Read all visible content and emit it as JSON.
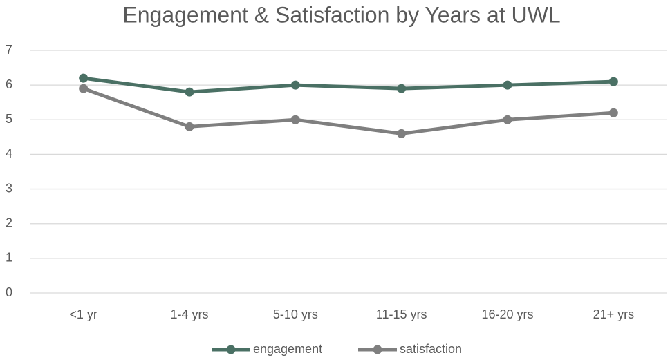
{
  "chart_data": {
    "type": "line",
    "title": "Engagement & Satisfaction by Years at UWL",
    "categories": [
      "<1 yr",
      "1-4 yrs",
      "5-10 yrs",
      "11-15 yrs",
      "16-20 yrs",
      "21+ yrs"
    ],
    "series": [
      {
        "name": "engagement",
        "color": "#4a7064",
        "values": [
          6.2,
          5.8,
          6.0,
          5.9,
          6.0,
          6.1
        ]
      },
      {
        "name": "satisfaction",
        "color": "#7f7f7f",
        "values": [
          5.9,
          4.8,
          5.0,
          4.6,
          5.0,
          5.2
        ]
      }
    ],
    "ylim": [
      0,
      7
    ],
    "yticks": [
      0,
      1,
      2,
      3,
      4,
      5,
      6,
      7
    ],
    "grid": true,
    "legend": "bottom"
  }
}
